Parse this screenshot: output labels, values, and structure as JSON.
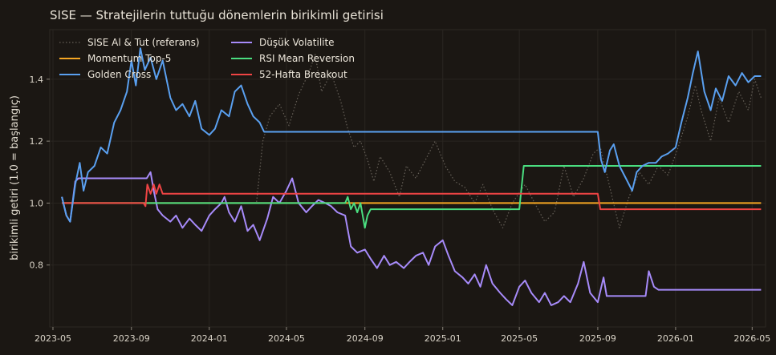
{
  "chart_data": {
    "type": "line",
    "title": "SISE — Stratejilerin tuttuğu dönemlerin birikimli getirisi",
    "xlabel": "",
    "ylabel": "birikimli getiri (1.0 = başlangıç)",
    "xlim": [
      "2023-04-26",
      "2026-05-22"
    ],
    "ylim": [
      0.6,
      1.56
    ],
    "x_ticks": [
      "2023-05",
      "2023-09",
      "2024-01",
      "2024-05",
      "2024-09",
      "2025-01",
      "2025-05",
      "2025-09",
      "2026-01",
      "2026-05"
    ],
    "y_ticks": [
      0.8,
      1.0,
      1.2,
      1.4
    ],
    "grid": true,
    "legend_position": "top-left",
    "series": [
      {
        "name": "SISE Al & Tut (referans)",
        "color": "#666058",
        "style": "dotted",
        "points": [
          [
            "2023-05-15",
            1.0
          ],
          [
            "2023-06-01",
            1.0
          ],
          [
            "2023-06-20",
            1.0
          ],
          [
            "2023-07-10",
            1.0
          ],
          [
            "2023-08-01",
            1.0
          ],
          [
            "2023-09-01",
            1.0
          ],
          [
            "2023-10-01",
            1.0
          ],
          [
            "2023-11-01",
            1.0
          ],
          [
            "2024-01-01",
            1.0
          ],
          [
            "2024-03-15",
            1.0
          ],
          [
            "2024-03-25",
            1.2
          ],
          [
            "2024-04-05",
            1.28
          ],
          [
            "2024-04-20",
            1.32
          ],
          [
            "2024-05-05",
            1.25
          ],
          [
            "2024-05-20",
            1.35
          ],
          [
            "2024-06-05",
            1.42
          ],
          [
            "2024-06-15",
            1.48
          ],
          [
            "2024-06-25",
            1.36
          ],
          [
            "2024-07-10",
            1.42
          ],
          [
            "2024-07-25",
            1.33
          ],
          [
            "2024-08-05",
            1.24
          ],
          [
            "2024-08-15",
            1.18
          ],
          [
            "2024-08-25",
            1.2
          ],
          [
            "2024-09-05",
            1.14
          ],
          [
            "2024-09-15",
            1.07
          ],
          [
            "2024-09-25",
            1.15
          ],
          [
            "2024-10-10",
            1.1
          ],
          [
            "2024-10-25",
            1.02
          ],
          [
            "2024-11-05",
            1.12
          ],
          [
            "2024-11-20",
            1.08
          ],
          [
            "2024-12-05",
            1.14
          ],
          [
            "2024-12-20",
            1.2
          ],
          [
            "2025-01-05",
            1.12
          ],
          [
            "2025-01-20",
            1.07
          ],
          [
            "2025-02-05",
            1.05
          ],
          [
            "2025-02-20",
            1.0
          ],
          [
            "2025-03-05",
            1.06
          ],
          [
            "2025-03-20",
            0.98
          ],
          [
            "2025-04-05",
            0.92
          ],
          [
            "2025-04-20",
            1.0
          ],
          [
            "2025-05-10",
            1.06
          ],
          [
            "2025-05-25",
            1.0
          ],
          [
            "2025-06-10",
            0.94
          ],
          [
            "2025-06-25",
            0.97
          ],
          [
            "2025-07-10",
            1.12
          ],
          [
            "2025-07-25",
            1.02
          ],
          [
            "2025-08-10",
            1.08
          ],
          [
            "2025-08-25",
            1.16
          ],
          [
            "2025-09-05",
            1.18
          ],
          [
            "2025-09-20",
            1.05
          ],
          [
            "2025-10-05",
            0.92
          ],
          [
            "2025-10-20",
            1.02
          ],
          [
            "2025-11-05",
            1.1
          ],
          [
            "2025-11-20",
            1.06
          ],
          [
            "2025-12-05",
            1.12
          ],
          [
            "2025-12-20",
            1.09
          ],
          [
            "2026-01-05",
            1.18
          ],
          [
            "2026-01-20",
            1.28
          ],
          [
            "2026-02-01",
            1.38
          ],
          [
            "2026-02-10",
            1.3
          ],
          [
            "2026-02-25",
            1.2
          ],
          [
            "2026-03-10",
            1.34
          ],
          [
            "2026-03-25",
            1.26
          ],
          [
            "2026-04-10",
            1.36
          ],
          [
            "2026-04-25",
            1.3
          ],
          [
            "2026-05-05",
            1.4
          ],
          [
            "2026-05-15",
            1.34
          ]
        ]
      },
      {
        "name": "Momentum Top-5",
        "color": "#f5a623",
        "style": "solid",
        "points": [
          [
            "2023-05-15",
            1.0
          ],
          [
            "2026-05-15",
            1.0
          ]
        ]
      },
      {
        "name": "Golden Cross",
        "color": "#5aa0f0",
        "style": "solid",
        "points": [
          [
            "2023-05-15",
            1.02
          ],
          [
            "2023-05-22",
            0.96
          ],
          [
            "2023-05-28",
            0.94
          ],
          [
            "2023-06-05",
            1.06
          ],
          [
            "2023-06-12",
            1.13
          ],
          [
            "2023-06-18",
            1.04
          ],
          [
            "2023-06-25",
            1.1
          ],
          [
            "2023-07-05",
            1.12
          ],
          [
            "2023-07-15",
            1.18
          ],
          [
            "2023-07-25",
            1.16
          ],
          [
            "2023-08-05",
            1.26
          ],
          [
            "2023-08-15",
            1.3
          ],
          [
            "2023-08-25",
            1.36
          ],
          [
            "2023-09-01",
            1.46
          ],
          [
            "2023-09-08",
            1.38
          ],
          [
            "2023-09-15",
            1.5
          ],
          [
            "2023-09-22",
            1.43
          ],
          [
            "2023-10-01",
            1.47
          ],
          [
            "2023-10-10",
            1.4
          ],
          [
            "2023-10-20",
            1.46
          ],
          [
            "2023-11-01",
            1.34
          ],
          [
            "2023-11-10",
            1.3
          ],
          [
            "2023-11-20",
            1.32
          ],
          [
            "2023-12-01",
            1.28
          ],
          [
            "2023-12-10",
            1.33
          ],
          [
            "2023-12-20",
            1.24
          ],
          [
            "2024-01-01",
            1.22
          ],
          [
            "2024-01-10",
            1.24
          ],
          [
            "2024-01-20",
            1.3
          ],
          [
            "2024-02-01",
            1.28
          ],
          [
            "2024-02-10",
            1.36
          ],
          [
            "2024-02-20",
            1.38
          ],
          [
            "2024-03-01",
            1.32
          ],
          [
            "2024-03-10",
            1.28
          ],
          [
            "2024-03-20",
            1.26
          ],
          [
            "2024-03-27",
            1.23
          ],
          [
            "2025-09-01",
            1.23
          ],
          [
            "2025-09-06",
            1.14
          ],
          [
            "2025-09-12",
            1.1
          ],
          [
            "2025-09-20",
            1.17
          ],
          [
            "2025-09-26",
            1.19
          ],
          [
            "2025-10-05",
            1.12
          ],
          [
            "2025-10-15",
            1.08
          ],
          [
            "2025-10-25",
            1.04
          ],
          [
            "2025-11-01",
            1.1
          ],
          [
            "2025-11-10",
            1.12
          ],
          [
            "2025-11-20",
            1.13
          ],
          [
            "2025-12-01",
            1.13
          ],
          [
            "2025-12-10",
            1.15
          ],
          [
            "2025-12-20",
            1.16
          ],
          [
            "2026-01-01",
            1.18
          ],
          [
            "2026-01-10",
            1.26
          ],
          [
            "2026-01-20",
            1.34
          ],
          [
            "2026-01-28",
            1.42
          ],
          [
            "2026-02-05",
            1.49
          ],
          [
            "2026-02-15",
            1.36
          ],
          [
            "2026-02-25",
            1.3
          ],
          [
            "2026-03-05",
            1.37
          ],
          [
            "2026-03-15",
            1.33
          ],
          [
            "2026-03-25",
            1.41
          ],
          [
            "2026-04-05",
            1.38
          ],
          [
            "2026-04-15",
            1.42
          ],
          [
            "2026-04-25",
            1.39
          ],
          [
            "2026-05-05",
            1.41
          ],
          [
            "2026-05-15",
            1.41
          ]
        ]
      },
      {
        "name": "Düşük Volatilite",
        "color": "#a78bfa",
        "style": "solid",
        "points": [
          [
            "2023-05-15",
            1.02
          ],
          [
            "2023-05-22",
            0.96
          ],
          [
            "2023-05-28",
            0.94
          ],
          [
            "2023-06-05",
            1.07
          ],
          [
            "2023-06-10",
            1.08
          ],
          [
            "2023-09-25",
            1.08
          ],
          [
            "2023-10-01",
            1.1
          ],
          [
            "2023-10-06",
            1.04
          ],
          [
            "2023-10-12",
            0.98
          ],
          [
            "2023-10-20",
            0.96
          ],
          [
            "2023-11-01",
            0.94
          ],
          [
            "2023-11-10",
            0.96
          ],
          [
            "2023-11-20",
            0.92
          ],
          [
            "2023-12-01",
            0.95
          ],
          [
            "2023-12-10",
            0.93
          ],
          [
            "2023-12-20",
            0.91
          ],
          [
            "2024-01-01",
            0.96
          ],
          [
            "2024-01-10",
            0.98
          ],
          [
            "2024-01-20",
            1.0
          ],
          [
            "2024-01-25",
            1.02
          ],
          [
            "2024-02-01",
            0.97
          ],
          [
            "2024-02-10",
            0.94
          ],
          [
            "2024-02-20",
            0.99
          ],
          [
            "2024-03-01",
            0.91
          ],
          [
            "2024-03-10",
            0.93
          ],
          [
            "2024-03-20",
            0.88
          ],
          [
            "2024-04-01",
            0.95
          ],
          [
            "2024-04-10",
            1.02
          ],
          [
            "2024-04-20",
            1.0
          ],
          [
            "2024-05-01",
            1.04
          ],
          [
            "2024-05-10",
            1.08
          ],
          [
            "2024-05-20",
            1.0
          ],
          [
            "2024-06-01",
            0.97
          ],
          [
            "2024-06-10",
            0.99
          ],
          [
            "2024-06-20",
            1.01
          ],
          [
            "2024-07-01",
            1.0
          ],
          [
            "2024-07-10",
            0.99
          ],
          [
            "2024-07-20",
            0.97
          ],
          [
            "2024-08-01",
            0.96
          ],
          [
            "2024-08-10",
            0.86
          ],
          [
            "2024-08-20",
            0.84
          ],
          [
            "2024-09-01",
            0.85
          ],
          [
            "2024-09-10",
            0.82
          ],
          [
            "2024-09-20",
            0.79
          ],
          [
            "2024-10-01",
            0.83
          ],
          [
            "2024-10-10",
            0.8
          ],
          [
            "2024-10-20",
            0.81
          ],
          [
            "2024-11-01",
            0.79
          ],
          [
            "2024-11-10",
            0.81
          ],
          [
            "2024-11-20",
            0.83
          ],
          [
            "2024-12-01",
            0.84
          ],
          [
            "2024-12-10",
            0.8
          ],
          [
            "2024-12-20",
            0.86
          ],
          [
            "2025-01-01",
            0.88
          ],
          [
            "2025-01-10",
            0.83
          ],
          [
            "2025-01-20",
            0.78
          ],
          [
            "2025-02-01",
            0.76
          ],
          [
            "2025-02-10",
            0.74
          ],
          [
            "2025-02-20",
            0.77
          ],
          [
            "2025-03-01",
            0.73
          ],
          [
            "2025-03-10",
            0.8
          ],
          [
            "2025-03-20",
            0.74
          ],
          [
            "2025-04-01",
            0.71
          ],
          [
            "2025-04-10",
            0.69
          ],
          [
            "2025-04-20",
            0.67
          ],
          [
            "2025-05-01",
            0.73
          ],
          [
            "2025-05-10",
            0.75
          ],
          [
            "2025-05-20",
            0.71
          ],
          [
            "2025-06-01",
            0.68
          ],
          [
            "2025-06-10",
            0.71
          ],
          [
            "2025-06-20",
            0.67
          ],
          [
            "2025-07-01",
            0.68
          ],
          [
            "2025-07-10",
            0.7
          ],
          [
            "2025-07-20",
            0.68
          ],
          [
            "2025-08-01",
            0.74
          ],
          [
            "2025-08-10",
            0.81
          ],
          [
            "2025-08-20",
            0.71
          ],
          [
            "2025-09-01",
            0.68
          ],
          [
            "2025-09-10",
            0.76
          ],
          [
            "2025-09-15",
            0.7
          ],
          [
            "2025-11-15",
            0.7
          ],
          [
            "2025-11-20",
            0.78
          ],
          [
            "2025-11-28",
            0.73
          ],
          [
            "2025-12-05",
            0.72
          ],
          [
            "2026-05-15",
            0.72
          ]
        ]
      },
      {
        "name": "RSI Mean Reversion",
        "color": "#4ade80",
        "style": "solid",
        "points": [
          [
            "2023-05-15",
            1.0
          ],
          [
            "2024-08-01",
            1.0
          ],
          [
            "2024-08-05",
            1.02
          ],
          [
            "2024-08-10",
            0.98
          ],
          [
            "2024-08-15",
            1.0
          ],
          [
            "2024-08-20",
            0.97
          ],
          [
            "2024-08-25",
            1.0
          ],
          [
            "2024-09-01",
            0.92
          ],
          [
            "2024-09-05",
            0.96
          ],
          [
            "2024-09-10",
            0.98
          ],
          [
            "2024-09-20",
            0.98
          ],
          [
            "2025-05-01",
            0.98
          ],
          [
            "2025-05-08",
            1.12
          ],
          [
            "2026-05-15",
            1.12
          ]
        ]
      },
      {
        "name": "52-Hafta Breakout",
        "color": "#ef4444",
        "style": "solid",
        "points": [
          [
            "2023-05-15",
            1.0
          ],
          [
            "2023-09-20",
            1.0
          ],
          [
            "2023-09-23",
            0.99
          ],
          [
            "2023-09-26",
            1.06
          ],
          [
            "2023-10-01",
            1.03
          ],
          [
            "2023-10-06",
            1.06
          ],
          [
            "2023-10-10",
            1.03
          ],
          [
            "2023-10-15",
            1.06
          ],
          [
            "2023-10-20",
            1.03
          ],
          [
            "2025-09-01",
            1.03
          ],
          [
            "2025-09-05",
            0.98
          ],
          [
            "2026-05-15",
            0.98
          ]
        ]
      }
    ]
  }
}
